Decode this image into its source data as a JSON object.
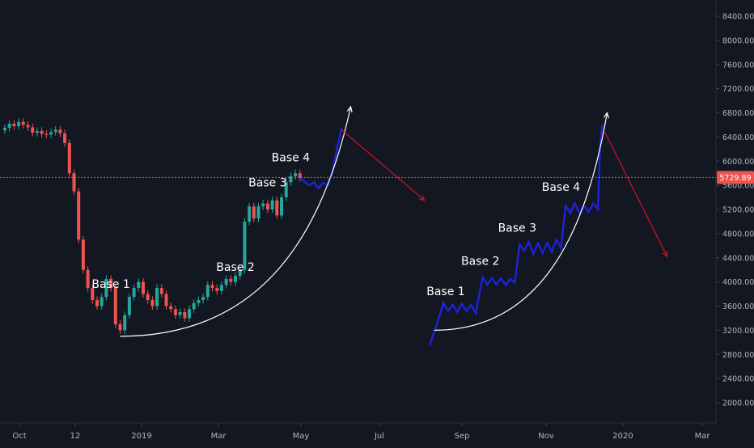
{
  "chart_data": {
    "type": "line",
    "price_axis": {
      "ticks": [
        "8400.00",
        "8000.00",
        "7600.00",
        "7200.00",
        "6800.00",
        "6400.00",
        "6000.00",
        "5600.00",
        "5200.00",
        "4800.00",
        "4400.00",
        "4000.00",
        "3600.00",
        "3200.00",
        "2800.00",
        "2400.00",
        "2000.00"
      ],
      "tick_values": [
        8400,
        8000,
        7600,
        7200,
        6800,
        6400,
        6000,
        5600,
        5200,
        4800,
        4400,
        4000,
        3600,
        3200,
        2800,
        2400,
        2000
      ],
      "range": [
        1700,
        8700
      ],
      "current_price_label": "5729.89",
      "current_price": 5729.89
    },
    "time_axis": {
      "labels": [
        "Oct",
        "12",
        "2019",
        "Mar",
        "May",
        "Jul",
        "Sep",
        "Nov",
        "2020",
        "Mar"
      ]
    },
    "series": [
      {
        "kind": "candlestick",
        "points": [
          [
            0,
            6550
          ],
          [
            1,
            6620
          ],
          [
            2,
            6580
          ],
          [
            3,
            6650
          ],
          [
            4,
            6600
          ],
          [
            5,
            6560
          ],
          [
            6,
            6470
          ],
          [
            7,
            6500
          ],
          [
            8,
            6450
          ],
          [
            9,
            6440
          ],
          [
            10,
            6480
          ],
          [
            11,
            6520
          ],
          [
            12,
            6460
          ],
          [
            13,
            6300
          ],
          [
            14,
            5800
          ],
          [
            15,
            5500
          ],
          [
            16,
            4700
          ],
          [
            17,
            4200
          ],
          [
            18,
            3900
          ],
          [
            19,
            3700
          ],
          [
            20,
            3600
          ],
          [
            21,
            3750
          ],
          [
            22,
            4050
          ],
          [
            23,
            3900
          ],
          [
            24,
            3300
          ],
          [
            25,
            3200
          ],
          [
            26,
            3450
          ],
          [
            27,
            3750
          ],
          [
            28,
            3900
          ],
          [
            29,
            4000
          ],
          [
            30,
            3800
          ],
          [
            31,
            3700
          ],
          [
            32,
            3600
          ],
          [
            33,
            3900
          ],
          [
            34,
            3800
          ],
          [
            35,
            3600
          ],
          [
            36,
            3550
          ],
          [
            37,
            3450
          ],
          [
            38,
            3500
          ],
          [
            39,
            3400
          ],
          [
            40,
            3550
          ],
          [
            41,
            3650
          ],
          [
            42,
            3700
          ],
          [
            43,
            3750
          ],
          [
            44,
            3950
          ],
          [
            45,
            3900
          ],
          [
            46,
            3850
          ],
          [
            47,
            3950
          ],
          [
            48,
            4050
          ],
          [
            49,
            4000
          ],
          [
            50,
            4100
          ],
          [
            51,
            4200
          ],
          [
            52,
            5000
          ],
          [
            53,
            5250
          ],
          [
            54,
            5050
          ],
          [
            55,
            5250
          ],
          [
            56,
            5300
          ],
          [
            57,
            5200
          ],
          [
            58,
            5350
          ],
          [
            59,
            5100
          ],
          [
            60,
            5400
          ],
          [
            61,
            5650
          ],
          [
            62,
            5750
          ],
          [
            63,
            5800
          ],
          [
            64,
            5720
          ]
        ]
      },
      {
        "kind": "projection",
        "points": [
          [
            64,
            5720
          ],
          [
            66,
            5600
          ],
          [
            67,
            5650
          ],
          [
            68,
            5550
          ],
          [
            69,
            5640
          ],
          [
            70,
            5600
          ],
          [
            71,
            5800
          ],
          [
            72,
            6200
          ],
          [
            73,
            6550
          ]
        ]
      },
      {
        "kind": "fractal",
        "points": [
          [
            0,
            2950
          ],
          [
            3,
            3280
          ],
          [
            6,
            3650
          ],
          [
            8,
            3520
          ],
          [
            10,
            3620
          ],
          [
            12,
            3500
          ],
          [
            14,
            3640
          ],
          [
            16,
            3520
          ],
          [
            18,
            3620
          ],
          [
            20,
            3480
          ],
          [
            23,
            4080
          ],
          [
            25,
            3960
          ],
          [
            27,
            4060
          ],
          [
            29,
            3960
          ],
          [
            31,
            4060
          ],
          [
            33,
            3950
          ],
          [
            35,
            4050
          ],
          [
            37,
            3990
          ],
          [
            39,
            4620
          ],
          [
            41,
            4520
          ],
          [
            43,
            4660
          ],
          [
            45,
            4460
          ],
          [
            47,
            4640
          ],
          [
            49,
            4480
          ],
          [
            51,
            4640
          ],
          [
            53,
            4500
          ],
          [
            55,
            4700
          ],
          [
            57,
            4560
          ],
          [
            59,
            5260
          ],
          [
            61,
            5140
          ],
          [
            63,
            5300
          ],
          [
            65,
            5140
          ],
          [
            67,
            5260
          ],
          [
            69,
            5160
          ],
          [
            71,
            5300
          ],
          [
            73,
            5200
          ],
          [
            74,
            6300
          ],
          [
            75,
            6600
          ]
        ]
      }
    ],
    "annotations": [
      {
        "text": "Base 1",
        "x": 23,
        "y": 3900,
        "panel": "left"
      },
      {
        "text": "Base 2",
        "x": 50,
        "y": 4180,
        "panel": "left"
      },
      {
        "text": "Base 3",
        "x": 57,
        "y": 5580,
        "panel": "left"
      },
      {
        "text": "Base 4",
        "x": 62,
        "y": 6000,
        "panel": "left"
      },
      {
        "text": "Base 1",
        "x": 7,
        "y": 3780,
        "panel": "right"
      },
      {
        "text": "Base 2",
        "x": 22,
        "y": 4280,
        "panel": "right"
      },
      {
        "text": "Base 3",
        "x": 38,
        "y": 4830,
        "panel": "right"
      },
      {
        "text": "Base 4",
        "x": 57,
        "y": 5510,
        "panel": "right"
      }
    ],
    "curves": [
      {
        "panel": "left",
        "start": [
          25,
          3100
        ],
        "end": [
          75,
          6900
        ]
      },
      {
        "panel": "right",
        "start": [
          2,
          3200
        ],
        "end": [
          77,
          6800
        ]
      }
    ],
    "down_arrows": [
      {
        "panel": "left",
        "start": [
          73,
          6520
        ],
        "end": [
          91,
          5350
        ]
      },
      {
        "panel": "right",
        "start": [
          76,
          6480
        ],
        "end": [
          103,
          4420
        ]
      }
    ],
    "colors": {
      "background": "#131722",
      "up_candle": "#26a69a",
      "down_candle": "#ef5350",
      "projection": "#1e22d9",
      "arrow_curve": "#ffffff",
      "down_arrow": "#d5121f",
      "price_line": "#ef5350",
      "price_label_bg": "#ef5350",
      "axis_text": "#b2b5be"
    }
  }
}
